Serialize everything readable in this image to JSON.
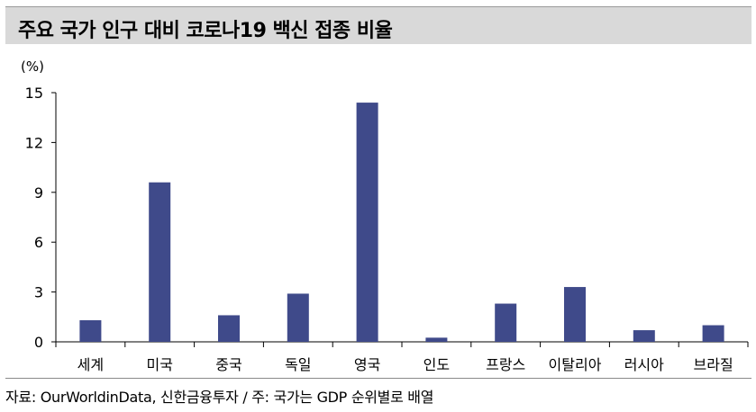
{
  "header": {
    "title": "주요 국가 인구 대비 코로나19 백신 접종 비율"
  },
  "footer": {
    "source": "자료: OurWorldinData, 신한금융투자 / 주: 국가는 GDP 순위별로 배열"
  },
  "chart_data": {
    "type": "bar",
    "title": "주요 국가 인구 대비 코로나19 백신 접종 비율",
    "ylabel": "(%)",
    "xlabel": "",
    "categories": [
      "세계",
      "미국",
      "중국",
      "독일",
      "영국",
      "인도",
      "프랑스",
      "이탈리아",
      "러시아",
      "브라질"
    ],
    "values": [
      1.3,
      9.6,
      1.6,
      2.9,
      14.4,
      0.25,
      2.3,
      3.3,
      0.7,
      1.0
    ],
    "ylim": [
      0,
      15
    ],
    "yticks": [
      "0",
      "3",
      "6",
      "9",
      "12",
      "15"
    ],
    "bar_color": "#3f4a8a",
    "grid": false
  }
}
